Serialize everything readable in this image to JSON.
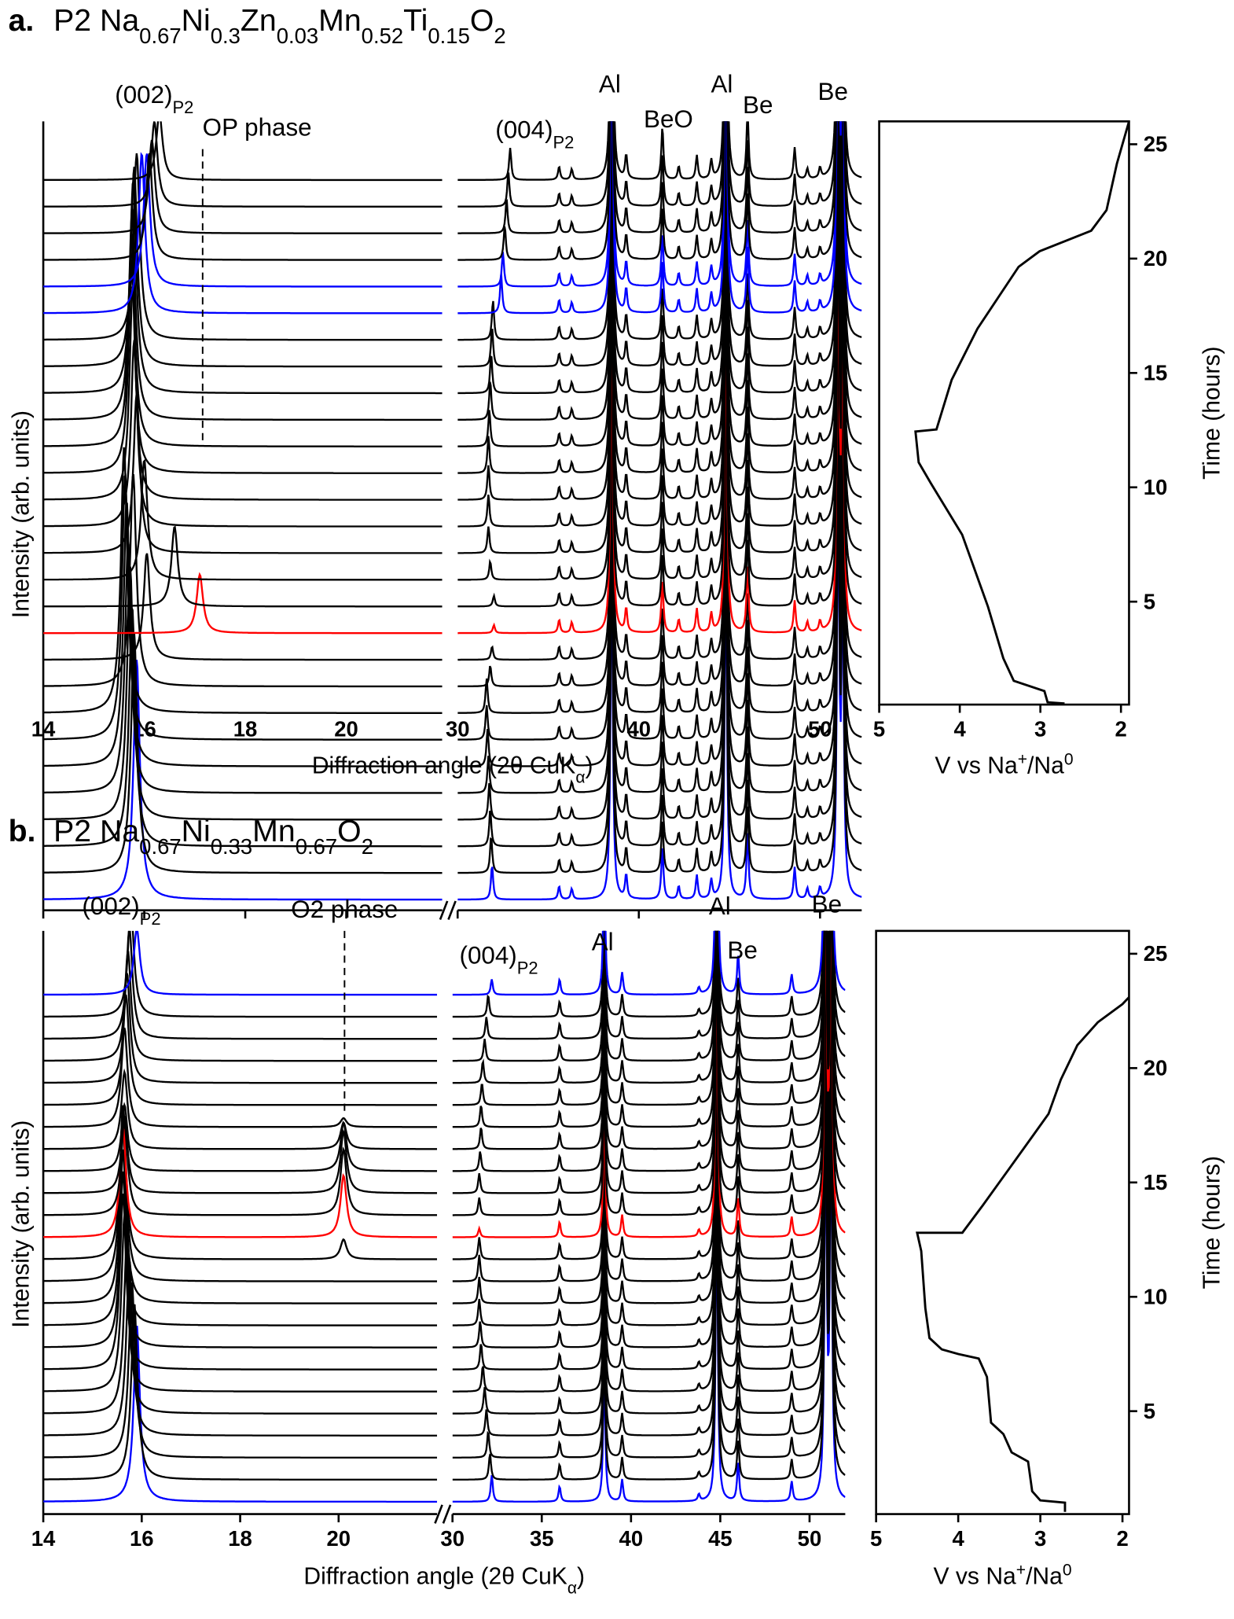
{
  "chart_data": [
    {
      "type": "stacked-xrd",
      "panel": "a.",
      "title": [
        "P2 Na",
        {
          "sub": "0.67"
        },
        "Ni",
        {
          "sub": "0.3"
        },
        "Zn",
        {
          "sub": "0.03"
        },
        "Mn",
        {
          "sub": "0.52"
        },
        "Ti",
        {
          "sub": "0.15"
        },
        "O",
        {
          "sub": "2"
        }
      ],
      "x_label": [
        "Diffraction angle (2θ CuK",
        {
          "sub": "α"
        },
        ")"
      ],
      "y_label": "Intensity (arb. units)",
      "xlim": [
        [
          14,
          21.9
        ],
        [
          30,
          52.3
        ]
      ],
      "xticks": [
        [
          14,
          16,
          18,
          20
        ],
        [
          30,
          40,
          50
        ]
      ],
      "ylim": [
        -0.4,
        29.2
      ],
      "annotations": [
        [
          "(002)",
          {
            "sub": "P2"
          }
        ],
        [
          "OP phase"
        ],
        [
          "(004)",
          {
            "sub": "P2"
          }
        ],
        [
          "Al"
        ],
        [
          "BeO"
        ],
        [
          "Al"
        ],
        [
          "Be"
        ],
        [
          "Be"
        ]
      ],
      "common_peaks": [
        [
          35.6,
          0.5
        ],
        [
          36.3,
          0.4
        ],
        [
          38.5,
          14
        ],
        [
          39.3,
          0.9
        ],
        [
          41.3,
          2.0
        ],
        [
          42.2,
          0.5
        ],
        [
          43.2,
          0.9
        ],
        [
          44.0,
          0.7
        ],
        [
          44.8,
          14
        ],
        [
          46.0,
          2.5
        ],
        [
          48.6,
          1.2
        ],
        [
          49.3,
          0.4
        ],
        [
          50.0,
          0.4
        ],
        [
          51.0,
          16
        ],
        [
          51.25,
          12
        ]
      ],
      "patterns": [
        {
          "color": "#0000ff",
          "peaks": [
            [
              15.85,
              9
            ],
            [
              31.9,
              1.3
            ]
          ]
        },
        {
          "color": "#000000",
          "peaks": [
            [
              15.8,
              9
            ],
            [
              31.85,
              1.4
            ]
          ]
        },
        {
          "color": "#000000",
          "peaks": [
            [
              15.76,
              9
            ],
            [
              31.8,
              1.4
            ]
          ]
        },
        {
          "color": "#000000",
          "peaks": [
            [
              15.72,
              9.5
            ],
            [
              31.75,
              1.4
            ]
          ]
        },
        {
          "color": "#000000",
          "peaks": [
            [
              15.68,
              9.5
            ],
            [
              31.7,
              1.4
            ]
          ]
        },
        {
          "color": "#000000",
          "peaks": [
            [
              15.65,
              10
            ],
            [
              31.65,
              1.4
            ]
          ]
        },
        {
          "color": "#000000",
          "peaks": [
            [
              15.62,
              10
            ],
            [
              31.6,
              1.3
            ]
          ]
        },
        {
          "color": "#000000",
          "peaks": [
            [
              15.6,
              10
            ],
            [
              31.6,
              1.3
            ]
          ]
        },
        {
          "color": "#000000",
          "peaks": [
            [
              15.78,
              8
            ],
            [
              31.8,
              0.8
            ]
          ]
        },
        {
          "color": "#000000",
          "peaks": [
            [
              16.05,
              4
            ],
            [
              31.9,
              0.5
            ]
          ]
        },
        {
          "color": "#ff0000",
          "peaks": [
            [
              17.1,
              2.2
            ],
            [
              32.0,
              0.3
            ]
          ]
        },
        {
          "color": "#000000",
          "peaks": [
            [
              16.6,
              3
            ],
            [
              32.0,
              0.4
            ]
          ]
        },
        {
          "color": "#000000",
          "peaks": [
            [
              16.0,
              4.5
            ],
            [
              31.8,
              0.7
            ]
          ]
        },
        {
          "color": "#000000",
          "peaks": [
            [
              15.85,
              6
            ],
            [
              31.7,
              1.0
            ]
          ]
        },
        {
          "color": "#000000",
          "peaks": [
            [
              15.8,
              7
            ],
            [
              31.7,
              1.2
            ]
          ]
        },
        {
          "color": "#000000",
          "peaks": [
            [
              15.77,
              8
            ],
            [
              31.7,
              1.3
            ]
          ]
        },
        {
          "color": "#000000",
          "peaks": [
            [
              15.75,
              8
            ],
            [
              31.7,
              1.4
            ]
          ]
        },
        {
          "color": "#000000",
          "peaks": [
            [
              15.75,
              8
            ],
            [
              31.75,
              1.4
            ]
          ]
        },
        {
          "color": "#000000",
          "peaks": [
            [
              15.76,
              8
            ],
            [
              31.8,
              1.5
            ]
          ]
        },
        {
          "color": "#000000",
          "peaks": [
            [
              15.78,
              8
            ],
            [
              31.85,
              1.5
            ]
          ]
        },
        {
          "color": "#000000",
          "peaks": [
            [
              15.8,
              7.5
            ],
            [
              31.9,
              1.5
            ]
          ]
        },
        {
          "color": "#000000",
          "peaks": [
            [
              15.85,
              7
            ],
            [
              31.95,
              1.5
            ]
          ]
        },
        {
          "color": "#0000ff",
          "peaks": [
            [
              15.95,
              6
            ],
            [
              32.4,
              1.5
            ]
          ]
        },
        {
          "color": "#0000ff",
          "peaks": [
            [
              16.05,
              5
            ],
            [
              32.5,
              1.3
            ]
          ]
        },
        {
          "color": "#000000",
          "peaks": [
            [
              16.1,
              4
            ],
            [
              32.6,
              1.3
            ]
          ]
        },
        {
          "color": "#000000",
          "peaks": [
            [
              16.15,
              3.5
            ],
            [
              32.7,
              1.3
            ]
          ]
        },
        {
          "color": "#000000",
          "peaks": [
            [
              16.2,
              3.2
            ],
            [
              32.8,
              1.3
            ]
          ]
        },
        {
          "color": "#000000",
          "peaks": [
            [
              16.3,
              2.5
            ],
            [
              32.9,
              1.2
            ]
          ]
        }
      ]
    },
    {
      "type": "line",
      "color": "#000000",
      "x_label": [
        "V vs Na",
        {
          "sup": "+"
        },
        "/Na",
        {
          "sup": "0"
        }
      ],
      "y_label": "Time (hours)",
      "xlim": [
        5,
        1.9
      ],
      "xticks": [
        5,
        4,
        3,
        2
      ],
      "ylim": [
        0.5,
        26
      ],
      "yticks": [
        5,
        10,
        15,
        20,
        25
      ],
      "x": [
        2.7,
        2.91,
        2.95,
        3.33,
        3.46,
        3.65,
        3.97,
        4.36,
        4.51,
        4.55,
        4.29,
        4.1,
        3.78,
        3.27,
        3.01,
        2.37,
        2.18,
        2.05,
        1.9
      ],
      "y": [
        0.55,
        0.6,
        1.09,
        1.54,
        2.53,
        4.78,
        7.93,
        10.18,
        11.09,
        12.44,
        12.53,
        14.7,
        16.94,
        19.64,
        20.32,
        21.22,
        22.12,
        24.15,
        26.0
      ]
    },
    {
      "type": "stacked-xrd",
      "panel": "b.",
      "title": [
        "P2 Na",
        {
          "sub": "0.67"
        },
        "Ni",
        {
          "sub": "0.33"
        },
        "Mn",
        {
          "sub": "0.67"
        },
        "O",
        {
          "sub": "2"
        }
      ],
      "x_label": [
        "Diffraction angle (2θ CuK",
        {
          "sub": "α"
        },
        ")"
      ],
      "y_label": "Intensity (arb. units)",
      "xlim": [
        [
          14,
          22
        ],
        [
          30,
          52
        ]
      ],
      "xticks": [
        [
          14,
          16,
          18,
          20
        ],
        [
          30,
          35,
          40,
          45,
          50
        ]
      ],
      "ylim": [
        -0.56,
        25.9
      ],
      "annotations": [
        [
          "(002)",
          {
            "sub": "P2"
          }
        ],
        [
          "O2 phase"
        ],
        [
          "(004)",
          {
            "sub": "P2"
          }
        ],
        [
          "Al"
        ],
        [
          "Al"
        ],
        [
          "Be"
        ],
        [
          "Be"
        ]
      ],
      "common_peaks": [
        [
          36.0,
          0.7
        ],
        [
          38.5,
          6
        ],
        [
          39.5,
          1.0
        ],
        [
          43.8,
          0.3
        ],
        [
          44.8,
          14
        ],
        [
          46.0,
          1.8
        ],
        [
          49.0,
          0.9
        ],
        [
          50.9,
          18
        ],
        [
          51.2,
          18
        ]
      ],
      "patterns": [
        {
          "color": "#0000ff",
          "peaks": [
            [
              15.9,
              8
            ],
            [
              32.2,
              1.2
            ]
          ]
        },
        {
          "color": "#000000",
          "peaks": [
            [
              15.85,
              8
            ],
            [
              32.1,
              1.2
            ]
          ]
        },
        {
          "color": "#000000",
          "peaks": [
            [
              15.8,
              8
            ],
            [
              32.0,
              1.2
            ]
          ]
        },
        {
          "color": "#000000",
          "peaks": [
            [
              15.75,
              8
            ],
            [
              31.9,
              1.2
            ]
          ]
        },
        {
          "color": "#000000",
          "peaks": [
            [
              15.7,
              8
            ],
            [
              31.8,
              1.2
            ]
          ]
        },
        {
          "color": "#000000",
          "peaks": [
            [
              15.65,
              8
            ],
            [
              31.7,
              1.2
            ]
          ]
        },
        {
          "color": "#000000",
          "peaks": [
            [
              15.62,
              8
            ],
            [
              31.6,
              1.2
            ]
          ]
        },
        {
          "color": "#000000",
          "peaks": [
            [
              15.62,
              8
            ],
            [
              31.55,
              1.2
            ]
          ]
        },
        {
          "color": "#000000",
          "peaks": [
            [
              15.62,
              8
            ],
            [
              31.5,
              1.2
            ]
          ]
        },
        {
          "color": "#000000",
          "peaks": [
            [
              15.62,
              8
            ],
            [
              31.5,
              1.2
            ]
          ]
        },
        {
          "color": "#000000",
          "peaks": [
            [
              15.62,
              8
            ],
            [
              31.5,
              1.2
            ]
          ]
        },
        {
          "color": "#000000",
          "peaks": [
            [
              15.62,
              7
            ],
            [
              31.5,
              1.0
            ],
            [
              20.1,
              0.9
            ]
          ]
        },
        {
          "color": "#ff0000",
          "peaks": [
            [
              15.62,
              5
            ],
            [
              31.5,
              0.4
            ],
            [
              20.1,
              2.8
            ]
          ]
        },
        {
          "color": "#000000",
          "peaks": [
            [
              15.65,
              4.5
            ],
            [
              31.5,
              0.8
            ],
            [
              20.1,
              3.0
            ]
          ]
        },
        {
          "color": "#000000",
          "peaks": [
            [
              15.65,
              3.5
            ],
            [
              31.5,
              0.9
            ],
            [
              20.1,
              2.8
            ]
          ]
        },
        {
          "color": "#000000",
          "peaks": [
            [
              15.65,
              3
            ],
            [
              31.55,
              0.9
            ],
            [
              20.1,
              2.2
            ]
          ]
        },
        {
          "color": "#000000",
          "peaks": [
            [
              15.65,
              3.5
            ],
            [
              31.6,
              1.0
            ],
            [
              20.1,
              1.2
            ]
          ]
        },
        {
          "color": "#000000",
          "peaks": [
            [
              15.65,
              4.5
            ],
            [
              31.6,
              1.0
            ],
            [
              20.1,
              0.4
            ]
          ]
        },
        {
          "color": "#000000",
          "peaks": [
            [
              15.68,
              5
            ],
            [
              31.65,
              1.0
            ]
          ]
        },
        {
          "color": "#000000",
          "peaks": [
            [
              15.7,
              5
            ],
            [
              31.7,
              1.0
            ]
          ]
        },
        {
          "color": "#000000",
          "peaks": [
            [
              15.72,
              5
            ],
            [
              31.8,
              1.0
            ]
          ]
        },
        {
          "color": "#000000",
          "peaks": [
            [
              15.75,
              5
            ],
            [
              31.9,
              1.0
            ]
          ]
        },
        {
          "color": "#000000",
          "peaks": [
            [
              15.78,
              5
            ],
            [
              32.0,
              1.0
            ]
          ]
        },
        {
          "color": "#0000ff",
          "peaks": [
            [
              15.9,
              3
            ],
            [
              32.2,
              0.7
            ]
          ]
        }
      ]
    },
    {
      "type": "line",
      "color": "#000000",
      "x_label": [
        "V vs Na",
        {
          "sup": "+"
        },
        "/Na",
        {
          "sup": "0"
        }
      ],
      "y_label": "Time (hours)",
      "xlim": [
        5,
        1.92
      ],
      "xticks": [
        5,
        4,
        3,
        2
      ],
      "ylim": [
        0.5,
        26
      ],
      "yticks": [
        5,
        10,
        15,
        20,
        25
      ],
      "x": [
        2.7,
        2.7,
        3.0,
        3.1,
        3.15,
        3.35,
        3.45,
        3.6,
        3.65,
        3.75,
        4.0,
        4.2,
        4.35,
        4.4,
        4.45,
        4.5,
        3.95,
        3.7,
        3.4,
        3.1,
        2.9,
        2.75,
        2.55,
        2.3,
        2.0,
        1.92
      ],
      "y": [
        0.6,
        1.0,
        1.1,
        1.5,
        2.8,
        3.2,
        4.0,
        4.5,
        6.5,
        7.3,
        7.5,
        7.7,
        8.2,
        9.5,
        12.0,
        12.8,
        12.8,
        14.0,
        15.5,
        17.0,
        18.0,
        19.5,
        21.0,
        22.0,
        22.8,
        23.1
      ]
    }
  ]
}
